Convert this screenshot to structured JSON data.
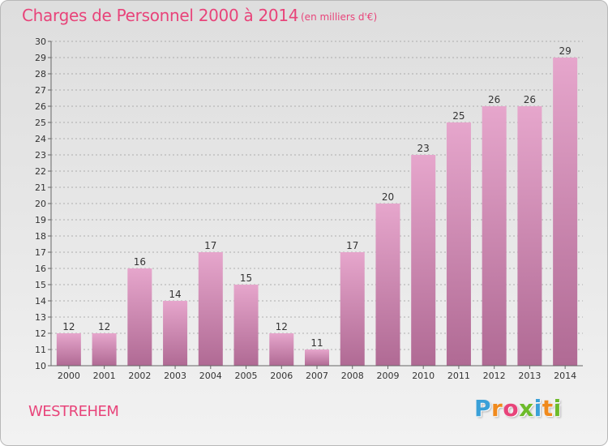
{
  "header": {
    "title": "Charges de Personnel 2000 à 2014",
    "subtitle": "(en milliers d'€)"
  },
  "footer": {
    "commune": "WESTREHEM",
    "logo_letters": [
      "P",
      "r",
      "o",
      "x",
      "i",
      "t",
      "i"
    ],
    "logo_colors": [
      "#3aa0d8",
      "#f08a1c",
      "#e8447a",
      "#6dbb2a",
      "#3aa0d8",
      "#f08a1c",
      "#6dbb2a"
    ]
  },
  "colors": {
    "bar_top": "#e6a6cc",
    "bar_bottom": "#b06a94",
    "accent": "#e8447a"
  },
  "chart_data": {
    "type": "bar",
    "title": "Charges de Personnel 2000 à 2014",
    "subtitle": "(en milliers d'€)",
    "categories": [
      "2000",
      "2001",
      "2002",
      "2003",
      "2004",
      "2005",
      "2006",
      "2007",
      "2008",
      "2009",
      "2010",
      "2011",
      "2012",
      "2013",
      "2014"
    ],
    "values": [
      12,
      12,
      16,
      14,
      17,
      15,
      12,
      11,
      17,
      20,
      23,
      25,
      26,
      26,
      29
    ],
    "ylim": [
      10,
      30
    ],
    "yticks": [
      10,
      11,
      12,
      13,
      14,
      15,
      16,
      17,
      18,
      19,
      20,
      21,
      22,
      23,
      24,
      25,
      26,
      27,
      28,
      29,
      30
    ],
    "grid": "horizontal-dashed",
    "data_labels": true,
    "xlabel": "",
    "ylabel": ""
  }
}
